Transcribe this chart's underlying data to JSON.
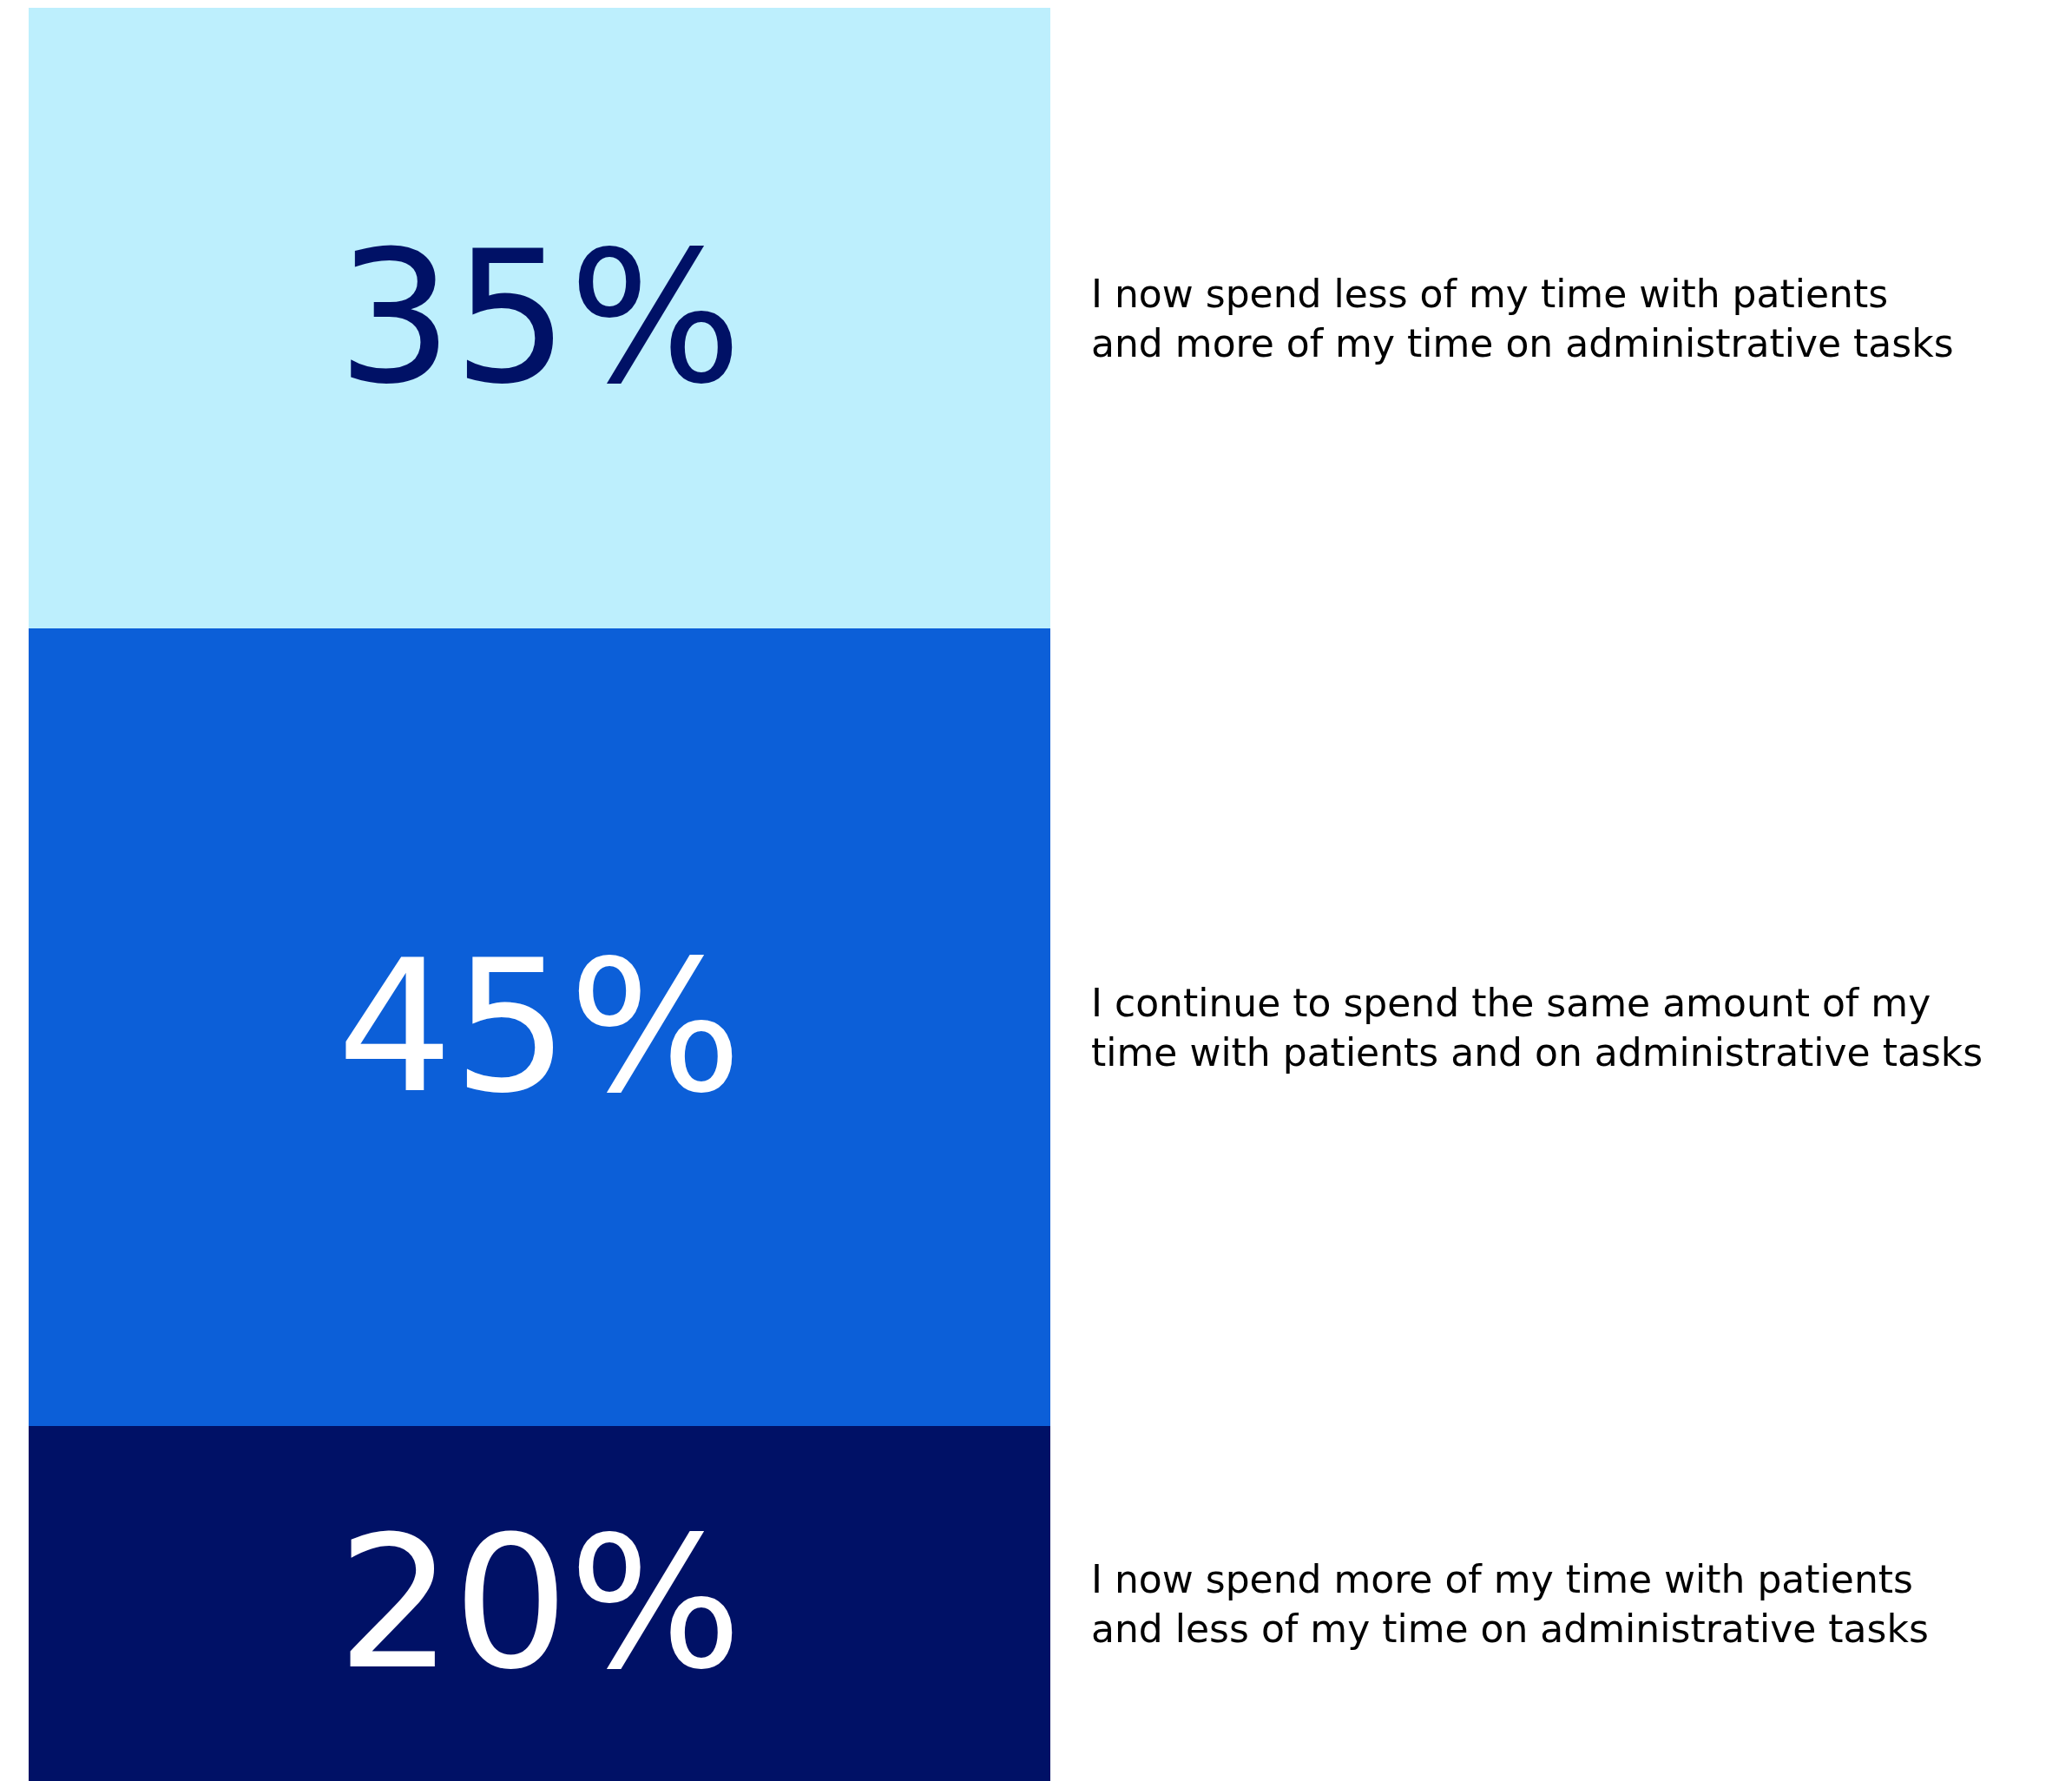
{
  "chart_data": {
    "type": "bar",
    "stacked": true,
    "categories": [
      null
    ],
    "legend": false,
    "series": [
      {
        "name": "I now spend more of my time with patients\nand less of my time on administrative tasks",
        "color": "#001166",
        "values": [
          20
        ],
        "value_labels": [
          "20%"
        ]
      },
      {
        "name": "I continue to spend the same amount of my\ntime with patients and on administrative tasks",
        "color": "#0c5fd8",
        "values": [
          45
        ],
        "value_labels": [
          "45%"
        ]
      },
      {
        "name": "I now spend less of my time with patients\nand more of my time on administrative tasks",
        "color": "#bdeffd",
        "values": [
          35
        ],
        "value_labels": [
          "35%"
        ]
      }
    ]
  }
}
